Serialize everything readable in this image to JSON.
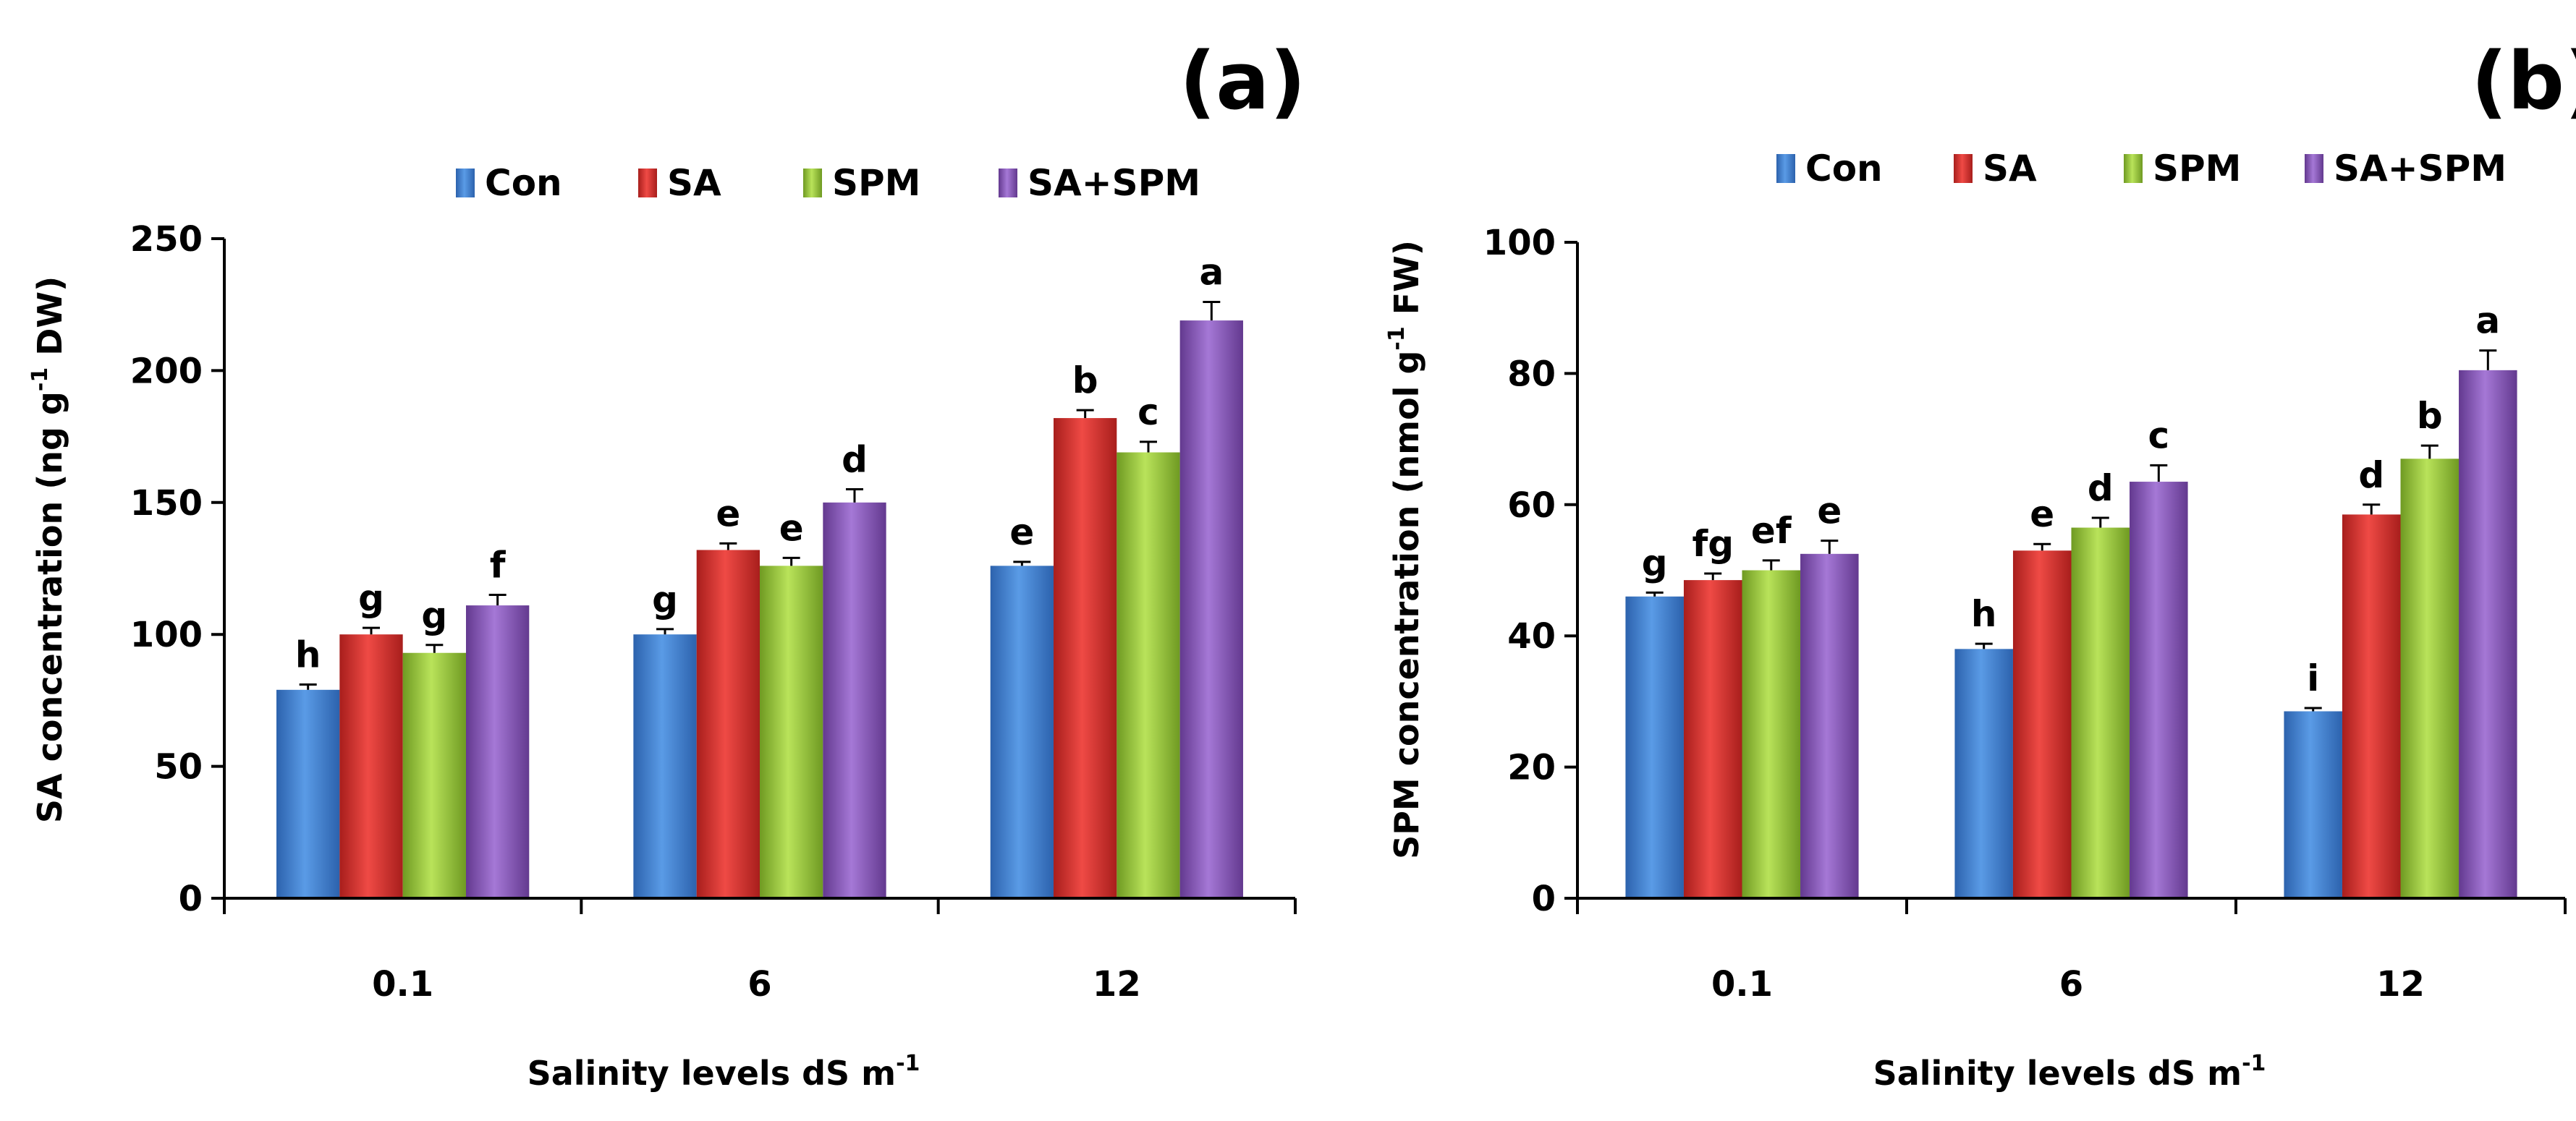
{
  "colors": {
    "Con": "#3f7fd4",
    "SA": "#d6302c",
    "SPM": "#9acb3c",
    "SA+SPM": "#8a5ab8"
  },
  "chart_data": [
    {
      "type": "bar",
      "panel_label": "(a)",
      "categories": [
        "0.1",
        "6",
        "12"
      ],
      "series": [
        {
          "name": "Con",
          "values": [
            79,
            100,
            126
          ],
          "errors": [
            2,
            2,
            1.5
          ],
          "letters": [
            "h",
            "g",
            "e"
          ]
        },
        {
          "name": "SA",
          "values": [
            100,
            132,
            182
          ],
          "errors": [
            2.5,
            2.5,
            3
          ],
          "letters": [
            "g",
            "e",
            "b"
          ]
        },
        {
          "name": "SPM",
          "values": [
            93,
            126,
            169
          ],
          "errors": [
            3,
            3,
            4
          ],
          "letters": [
            "g",
            "e",
            "c"
          ]
        },
        {
          "name": "SA+SPM",
          "values": [
            111,
            150,
            219
          ],
          "errors": [
            4,
            5,
            7
          ],
          "letters": [
            "f",
            "d",
            "a"
          ]
        }
      ],
      "ylim": [
        0,
        250
      ],
      "yticks": [
        "0",
        "50",
        "100",
        "150",
        "200",
        "250"
      ],
      "ylabel_main": "SA concentration (ng g",
      "ylabel_sup": "-1",
      "ylabel_end": " DW)",
      "xlabel_main": "Salinity levels dS m",
      "xlabel_sup": "-1",
      "legend": [
        "Con",
        "SA",
        "SPM",
        "SA+SPM"
      ],
      "legend_position": "top"
    },
    {
      "type": "bar",
      "panel_label": "(b)",
      "categories": [
        "0.1",
        "6",
        "12"
      ],
      "series": [
        {
          "name": "Con",
          "values": [
            46,
            38,
            28.5
          ],
          "errors": [
            0.6,
            0.8,
            0.5
          ],
          "letters": [
            "g",
            "h",
            "i"
          ]
        },
        {
          "name": "SA",
          "values": [
            48.5,
            53,
            58.5
          ],
          "errors": [
            1,
            1,
            1.5
          ],
          "letters": [
            "fg",
            "e",
            "d"
          ]
        },
        {
          "name": "SPM",
          "values": [
            50,
            56.5,
            67
          ],
          "errors": [
            1.5,
            1.5,
            2
          ],
          "letters": [
            "ef",
            "d",
            "b"
          ]
        },
        {
          "name": "SA+SPM",
          "values": [
            52.5,
            63.5,
            80.5
          ],
          "errors": [
            2,
            2.5,
            3
          ],
          "letters": [
            "e",
            "c",
            "a"
          ]
        }
      ],
      "ylim": [
        0,
        100
      ],
      "yticks": [
        "0",
        "20",
        "40",
        "60",
        "80",
        "100"
      ],
      "ylabel_main": "SPM concentration (nmol g",
      "ylabel_sup": "-1",
      "ylabel_end": " FW)",
      "xlabel_main": "Salinity levels dS m",
      "xlabel_sup": "-1",
      "legend": [
        "Con",
        "SA",
        "SPM",
        "SA+SPM"
      ],
      "legend_position": "top"
    }
  ]
}
